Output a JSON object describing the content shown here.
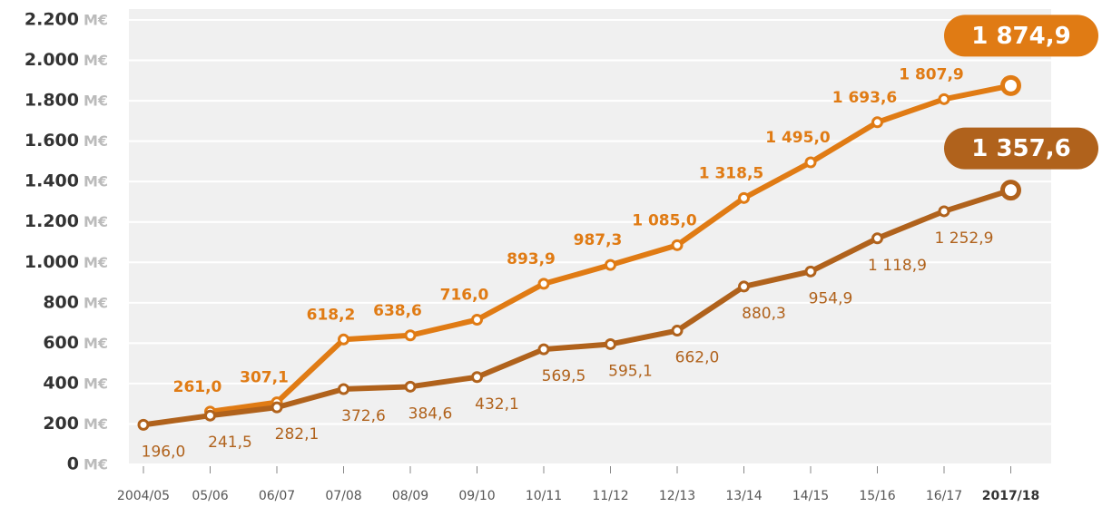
{
  "chart_data": {
    "type": "line",
    "categories": [
      "2004/05",
      "05/06",
      "06/07",
      "07/08",
      "08/09",
      "09/10",
      "10/11",
      "11/12",
      "12/13",
      "13/14",
      "14/15",
      "15/16",
      "16/17",
      "2017/18"
    ],
    "series": [
      {
        "color": "#e07b14",
        "values": [
          null,
          261.0,
          307.1,
          618.2,
          638.6,
          716.0,
          893.9,
          987.3,
          1085.0,
          1318.5,
          1495.0,
          1693.6,
          1807.9,
          1874.9
        ],
        "value_labels": [
          null,
          "261,0",
          "307,1",
          "618,2",
          "638,6",
          "716,0",
          "893,9",
          "987,3",
          "1 085,0",
          "1 318,5",
          "1 495,0",
          "1 693,6",
          "1 807,9",
          "1 874,9"
        ]
      },
      {
        "color": "#b0621c",
        "values": [
          196.0,
          241.5,
          282.1,
          372.6,
          384.6,
          432.1,
          569.5,
          595.1,
          662.0,
          880.3,
          954.9,
          1118.9,
          1252.9,
          1357.6
        ],
        "value_labels": [
          "196,0",
          "241,5",
          "282,1",
          "372,6",
          "384,6",
          "432,1",
          "569,5",
          "595,1",
          "662,0",
          "880,3",
          "954,9",
          "1 118,9",
          "1 252,9",
          "1 357,6"
        ]
      }
    ],
    "ylim": [
      0,
      2200
    ],
    "yticks": [
      0,
      200,
      400,
      600,
      800,
      {
        "value": 1000,
        "label": "1.000"
      },
      {
        "value": 1200,
        "label": "1.200"
      },
      {
        "value": 1400,
        "label": "1.400"
      },
      {
        "value": 1600,
        "label": "1.600"
      },
      {
        "value": 1800,
        "label": "1.800"
      },
      {
        "value": 2000,
        "label": "2.000"
      },
      {
        "value": 2200,
        "label": "2.200"
      }
    ],
    "y_unit": "M€",
    "grid": true
  }
}
